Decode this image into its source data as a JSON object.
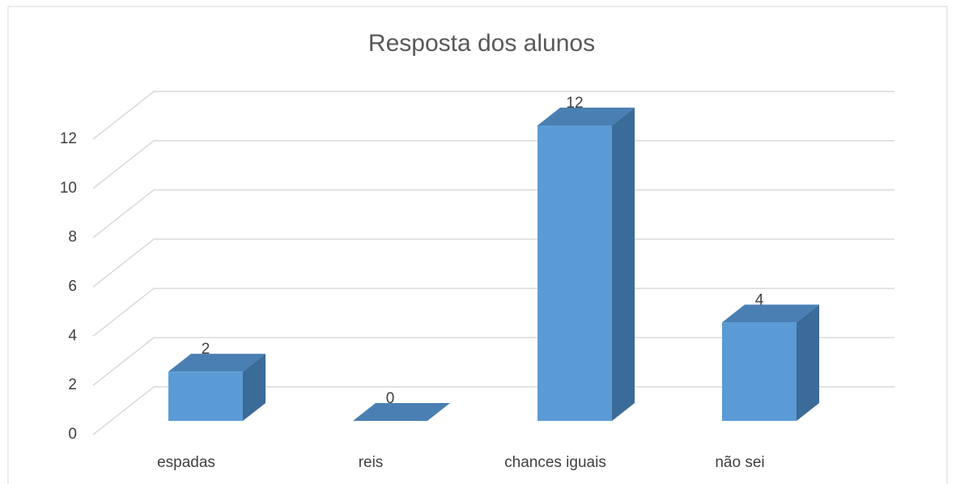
{
  "chart_data": {
    "type": "bar3d",
    "title": "Resposta dos alunos",
    "categories": [
      "espadas",
      "reis",
      "chances iguais",
      "não sei"
    ],
    "values": [
      2,
      0,
      12,
      4
    ],
    "color": "#5b9bd5",
    "ylim": [
      0,
      12
    ],
    "yticks": [
      0,
      2,
      4,
      6,
      8,
      10,
      12
    ],
    "grid": true
  }
}
